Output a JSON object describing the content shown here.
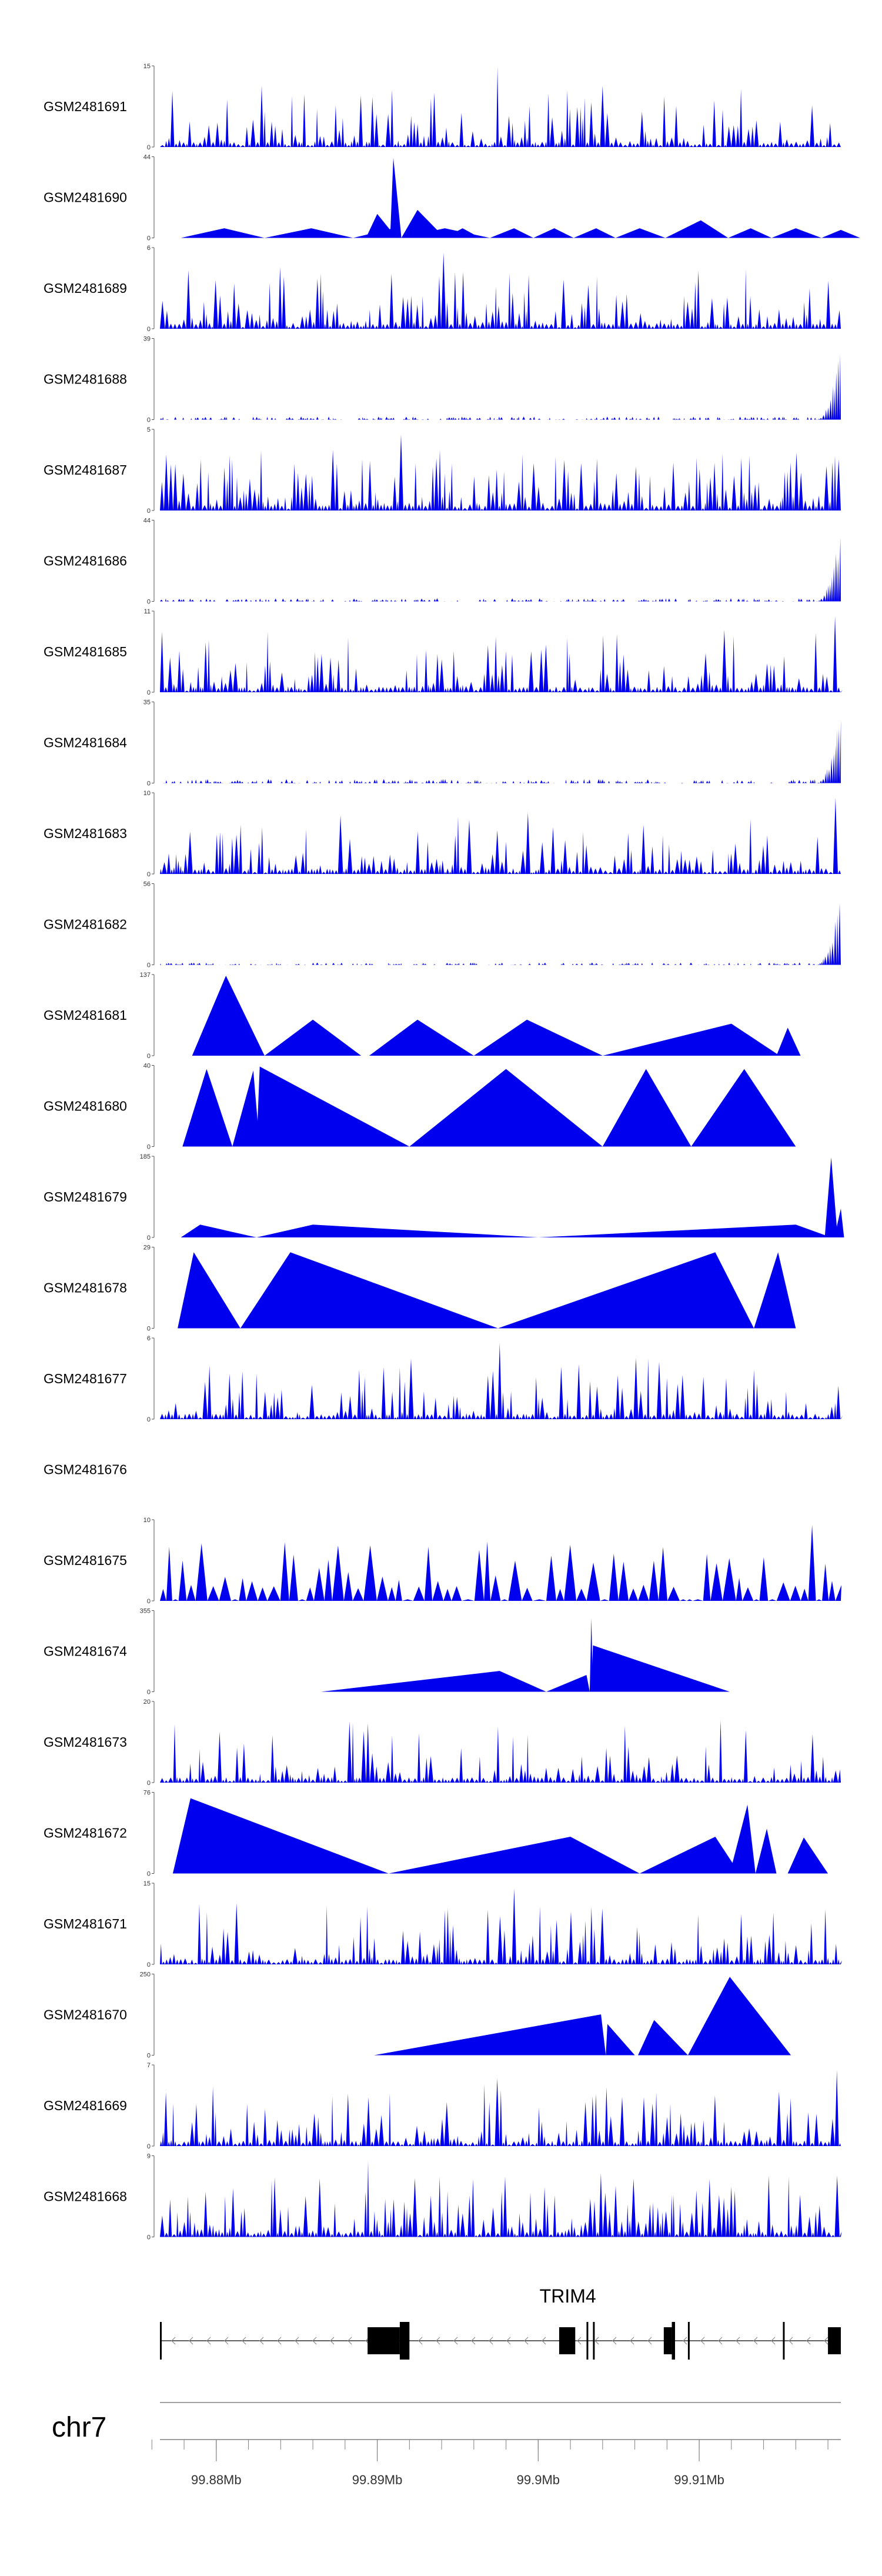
{
  "chart_data": {
    "type": "area",
    "chromosome": "chr7",
    "x_unit": "Mb",
    "xlim": [
      99.8765,
      99.9188
    ],
    "grid": false,
    "legend": "none",
    "colors": {
      "coverage": "#0000ee",
      "gene": "#000000",
      "axis": "#808080"
    },
    "tracks": [
      {
        "name": "GSM2481691",
        "ymax": 15,
        "ymin": 0,
        "shape": "dense",
        "seed": 11,
        "density": 0.3,
        "spikes": [
          [
            99.8975,
            1.0
          ]
        ]
      },
      {
        "name": "GSM2481690",
        "ymax": 44,
        "ymin": 0,
        "shape": "peaks",
        "peaks": [
          [
            99.8778,
            99.8805,
            99.883,
            0.12
          ],
          [
            99.883,
            99.8859,
            99.8885,
            0.12
          ],
          [
            99.8885,
            99.891,
            99.8915,
            0.12
          ],
          [
            99.8915,
            99.8942,
            99.897,
            0.12
          ],
          [
            99.8893,
            99.89,
            99.8912,
            0.3
          ],
          [
            99.8908,
            99.891,
            99.8915,
            1.0
          ],
          [
            99.8915,
            99.8925,
            99.8942,
            0.35
          ],
          [
            99.8942,
            99.8953,
            99.8964,
            0.12
          ],
          [
            99.897,
            99.8985,
            99.8997,
            0.12
          ],
          [
            99.8997,
            99.901,
            99.9022,
            0.12
          ],
          [
            99.9022,
            99.9036,
            99.9048,
            0.12
          ],
          [
            99.9048,
            99.9063,
            99.9079,
            0.12
          ],
          [
            99.9079,
            99.9101,
            99.9118,
            0.22
          ],
          [
            99.9118,
            99.9132,
            99.9145,
            0.12
          ],
          [
            99.9145,
            99.916,
            99.9176,
            0.12
          ],
          [
            99.9176,
            99.9188,
            99.92,
            0.1
          ]
        ]
      },
      {
        "name": "GSM2481689",
        "ymax": 6,
        "ymin": 0,
        "shape": "dense",
        "seed": 23,
        "density": 0.55,
        "spikes": [
          [
            99.894,
            0.95
          ],
          [
            99.918,
            0.6
          ]
        ]
      },
      {
        "name": "GSM2481688",
        "ymax": 39,
        "ymin": 0,
        "shape": "endpeak",
        "seed": 31,
        "base": 0.04
      },
      {
        "name": "GSM2481687",
        "ymax": 5,
        "ymin": 0,
        "shape": "dense",
        "seed": 37,
        "density": 0.8,
        "spikes": [
          [
            99.8915,
            0.95
          ]
        ]
      },
      {
        "name": "GSM2481686",
        "ymax": 44,
        "ymin": 0,
        "shape": "endpeak",
        "seed": 41,
        "base": 0.04
      },
      {
        "name": "GSM2481685",
        "ymax": 11,
        "ymin": 0,
        "shape": "dense",
        "seed": 43,
        "density": 0.45,
        "spikes": [
          [
            99.9184,
            0.95
          ]
        ]
      },
      {
        "name": "GSM2481684",
        "ymax": 35,
        "ymin": 0,
        "shape": "endpeak",
        "seed": 47,
        "base": 0.05
      },
      {
        "name": "GSM2481683",
        "ymax": 10,
        "ymin": 0,
        "shape": "dense",
        "seed": 53,
        "density": 0.4,
        "spikes": [
          [
            99.9185,
            0.95
          ]
        ]
      },
      {
        "name": "GSM2481682",
        "ymax": 56,
        "ymin": 0,
        "shape": "endpeak",
        "seed": 59,
        "base": 0.03
      },
      {
        "name": "GSM2481681",
        "ymax": 137,
        "ymin": 0,
        "shape": "peaks",
        "peaks": [
          [
            99.8785,
            99.8806,
            99.883,
            1.0
          ],
          [
            99.883,
            99.886,
            99.889,
            0.45
          ],
          [
            99.8895,
            99.8925,
            99.896,
            0.45
          ],
          [
            99.896,
            99.8993,
            99.904,
            0.45
          ],
          [
            99.904,
            99.912,
            99.915,
            0.4
          ],
          [
            99.9148,
            99.9155,
            99.9163,
            0.35
          ]
        ]
      },
      {
        "name": "GSM2481680",
        "ymax": 40,
        "ymin": 0,
        "shape": "peaks",
        "peaks": [
          [
            99.8779,
            99.8794,
            99.881,
            0.97
          ],
          [
            99.881,
            99.8823,
            99.8827,
            0.95
          ],
          [
            99.8825,
            99.8827,
            99.892,
            1.0
          ],
          [
            99.892,
            99.898,
            99.904,
            0.97
          ],
          [
            99.904,
            99.9067,
            99.9095,
            0.97
          ],
          [
            99.9095,
            99.9128,
            99.916,
            0.97
          ]
        ]
      },
      {
        "name": "GSM2481679",
        "ymax": 185,
        "ymin": 0,
        "shape": "peaks",
        "peaks": [
          [
            99.8778,
            99.879,
            99.8825,
            0.16
          ],
          [
            99.8825,
            99.886,
            99.9,
            0.16
          ],
          [
            99.9,
            99.916,
            99.9182,
            0.16
          ],
          [
            99.9178,
            99.9182,
            99.9186,
            1.0
          ],
          [
            99.9184,
            99.9188,
            99.919,
            0.36
          ]
        ]
      },
      {
        "name": "GSM2481678",
        "ymax": 29,
        "ymin": 0,
        "shape": "peaks",
        "peaks": [
          [
            99.8776,
            99.8786,
            99.8815,
            0.95
          ],
          [
            99.8815,
            99.8846,
            99.8975,
            0.95
          ],
          [
            99.8975,
            99.911,
            99.9134,
            0.95
          ],
          [
            99.9134,
            99.9149,
            99.916,
            0.95
          ]
        ]
      },
      {
        "name": "GSM2481677",
        "ymax": 6,
        "ymin": 0,
        "shape": "dense",
        "seed": 67,
        "density": 0.42,
        "spikes": [
          [
            99.8975,
            0.95
          ]
        ]
      },
      {
        "name": "GSM2481676",
        "ymax": null,
        "ymin": null,
        "shape": "empty"
      },
      {
        "name": "GSM2481675",
        "ymax": 10,
        "ymin": 0,
        "shape": "sparse",
        "seed": 71,
        "spikes": [
          [
            99.9168,
            0.95
          ]
        ]
      },
      {
        "name": "GSM2481674",
        "ymax": 355,
        "ymin": 0,
        "shape": "peaks",
        "peaks": [
          [
            99.8865,
            99.8976,
            99.9005,
            0.26
          ],
          [
            99.9005,
            99.903,
            99.9032,
            0.21
          ],
          [
            99.9032,
            99.9033,
            99.9034,
            0.92
          ],
          [
            99.9033,
            99.9034,
            99.9119,
            0.58
          ]
        ]
      },
      {
        "name": "GSM2481673",
        "ymax": 20,
        "ymin": 0,
        "shape": "dense",
        "seed": 79,
        "density": 0.3,
        "spikes": [
          [
            99.8975,
            0.7
          ],
          [
            99.9188,
            0.95
          ]
        ]
      },
      {
        "name": "GSM2481672",
        "ymax": 76,
        "ymin": 0,
        "shape": "peaks",
        "peaks": [
          [
            99.8773,
            99.8784,
            99.8907,
            0.94
          ],
          [
            99.8907,
            99.902,
            99.9063,
            0.46
          ],
          [
            99.9063,
            99.911,
            99.9125,
            0.46
          ],
          [
            99.9119,
            99.913,
            99.9135,
            0.86
          ],
          [
            99.9135,
            99.9142,
            99.9148,
            0.56
          ],
          [
            99.9155,
            99.9165,
            99.918,
            0.45
          ]
        ]
      },
      {
        "name": "GSM2481671",
        "ymax": 15,
        "ymin": 0,
        "shape": "dense",
        "seed": 83,
        "density": 0.38,
        "spikes": [
          [
            99.8985,
            0.95
          ]
        ]
      },
      {
        "name": "GSM2481670",
        "ymax": 250,
        "ymin": 0,
        "shape": "peaks",
        "peaks": [
          [
            99.8898,
            99.9039,
            99.9042,
            0.51
          ],
          [
            99.9042,
            99.9043,
            99.906,
            0.39
          ],
          [
            99.9062,
            99.9072,
            99.9093,
            0.44
          ],
          [
            99.9093,
            99.9119,
            99.9157,
            0.98
          ]
        ]
      },
      {
        "name": "GSM2481669",
        "ymax": 7,
        "ymin": 0,
        "shape": "dense",
        "seed": 89,
        "density": 0.4,
        "spikes": [
          [
            99.8975,
            0.85
          ],
          [
            99.9185,
            0.95
          ]
        ]
      },
      {
        "name": "GSM2481668",
        "ymax": 9,
        "ymin": 0,
        "shape": "dense",
        "seed": 97,
        "density": 0.65,
        "spikes": [
          [
            99.8895,
            0.95
          ],
          [
            99.904,
            0.8
          ]
        ]
      }
    ],
    "gene": {
      "symbol": "TRIM4",
      "strand": "-",
      "start": 99.8765,
      "end": 99.9188,
      "exons": [
        [
          99.8765,
          99.8766,
          "thin"
        ],
        [
          99.8894,
          99.8914,
          "thick"
        ],
        [
          99.8914,
          99.892,
          "thick-tall"
        ],
        [
          99.9013,
          99.9023,
          "thick"
        ],
        [
          99.903,
          99.9031,
          "thin"
        ],
        [
          99.9034,
          99.9035,
          "thin"
        ],
        [
          99.9078,
          99.9083,
          "thick"
        ],
        [
          99.9083,
          99.9085,
          "thin"
        ],
        [
          99.9093,
          99.9094,
          "thin"
        ],
        [
          99.9152,
          99.9153,
          "thin"
        ],
        [
          99.918,
          99.9188,
          "thick"
        ]
      ]
    },
    "axis": {
      "label": "chr7",
      "major_ticks": [
        99.88,
        99.89,
        99.9,
        99.91
      ],
      "major_labels": [
        "99.88Mb",
        "99.89Mb",
        "99.9Mb",
        "99.91Mb"
      ],
      "minor_ticks": [
        99.876,
        99.878,
        99.88,
        99.882,
        99.884,
        99.886,
        99.888,
        99.89,
        99.892,
        99.894,
        99.896,
        99.898,
        99.9,
        99.902,
        99.904,
        99.906,
        99.908,
        99.91,
        99.912,
        99.914,
        99.916,
        99.918
      ]
    }
  }
}
